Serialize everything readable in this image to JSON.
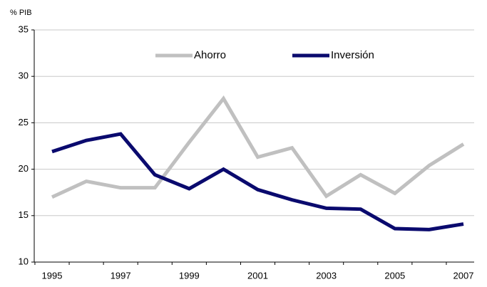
{
  "chart_data": {
    "type": "line",
    "y_label": "% PIB",
    "categories": [
      "1995",
      null,
      "1997",
      null,
      "1999",
      null,
      "2001",
      null,
      "2003",
      null,
      "2005",
      null,
      "2007"
    ],
    "series": [
      {
        "name": "Ahorro",
        "color": "#c0c0c0",
        "values": [
          17.0,
          18.7,
          18.0,
          18.0,
          22.9,
          27.6,
          21.3,
          22.3,
          17.1,
          19.4,
          17.4,
          20.4,
          22.7
        ]
      },
      {
        "name": "Inversión",
        "color": "#0a0a6e",
        "values": [
          21.9,
          23.1,
          23.8,
          19.4,
          17.9,
          20.0,
          17.8,
          16.7,
          15.8,
          15.7,
          13.6,
          13.5,
          14.1
        ]
      }
    ],
    "ylim": [
      10,
      35
    ],
    "yticks": [
      10,
      15,
      20,
      25,
      30,
      35
    ],
    "grid": true
  }
}
